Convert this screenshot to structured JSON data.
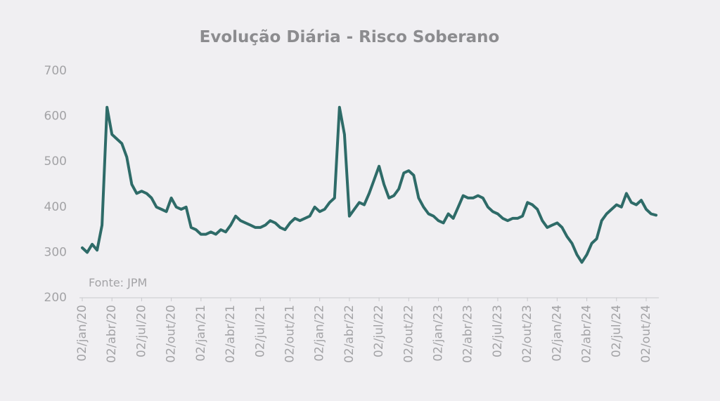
{
  "chart_data": {
    "type": "line",
    "title": "Evolução Diária - Risco Soberano",
    "annotation": "Fonte: JPM",
    "categories": [
      "02/jan/20",
      null,
      null,
      null,
      null,
      null,
      "02/abr/20",
      null,
      null,
      null,
      null,
      null,
      "02/jul/20",
      null,
      null,
      null,
      null,
      null,
      "02/out/20",
      null,
      null,
      null,
      null,
      null,
      "02/jan/21",
      null,
      null,
      null,
      null,
      null,
      "02/abr/21",
      null,
      null,
      null,
      null,
      null,
      "02/jul/21",
      null,
      null,
      null,
      null,
      null,
      "02/out/21",
      null,
      null,
      null,
      null,
      null,
      "02/jan/22",
      null,
      null,
      null,
      null,
      null,
      "02/abr/22",
      null,
      null,
      null,
      null,
      null,
      "02/jul/22",
      null,
      null,
      null,
      null,
      null,
      "02/out/22",
      null,
      null,
      null,
      null,
      null,
      "02/jan/23",
      null,
      null,
      null,
      null,
      null,
      "02/abr/23",
      null,
      null,
      null,
      null,
      null,
      "02/jul/23",
      null,
      null,
      null,
      null,
      null,
      "02/out/23",
      null,
      null,
      null,
      null,
      null,
      "02/jan/24",
      null,
      null,
      null,
      null,
      null,
      "02/abr/24",
      null,
      null,
      null,
      null,
      null,
      "02/jul/24",
      null,
      null,
      null,
      null,
      null,
      "02/out/24",
      null,
      null
    ],
    "values": [
      310,
      300,
      318,
      305,
      360,
      620,
      560,
      550,
      540,
      510,
      450,
      430,
      435,
      430,
      420,
      400,
      395,
      390,
      420,
      400,
      395,
      400,
      355,
      350,
      340,
      340,
      345,
      340,
      350,
      345,
      360,
      380,
      370,
      365,
      360,
      355,
      355,
      360,
      370,
      365,
      355,
      350,
      365,
      375,
      370,
      375,
      380,
      400,
      390,
      395,
      410,
      420,
      620,
      560,
      380,
      395,
      410,
      405,
      430,
      460,
      490,
      450,
      420,
      425,
      440,
      475,
      480,
      470,
      420,
      400,
      385,
      380,
      370,
      365,
      385,
      375,
      400,
      425,
      420,
      420,
      425,
      420,
      400,
      390,
      385,
      375,
      370,
      375,
      375,
      380,
      410,
      405,
      395,
      370,
      355,
      360,
      365,
      355,
      335,
      320,
      295,
      278,
      295,
      320,
      330,
      370,
      385,
      395,
      405,
      400,
      430,
      410,
      405,
      415,
      395,
      385,
      382
    ],
    "color": "#2e6b68",
    "ylim": [
      200,
      700
    ],
    "yticks": [
      200,
      300,
      400,
      500,
      600,
      700
    ],
    "grid": false
  }
}
